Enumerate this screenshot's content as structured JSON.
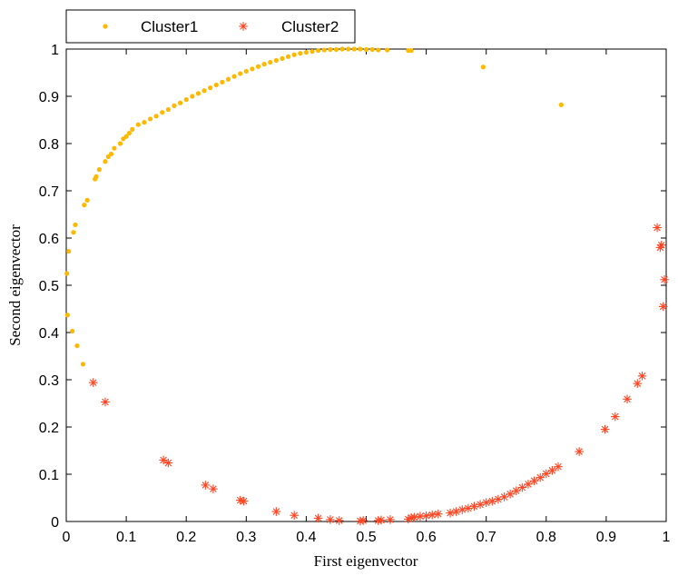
{
  "chart_data": {
    "type": "scatter",
    "title": "",
    "xlabel": "First eigenvector",
    "ylabel": "Second eigenvector",
    "xlim": [
      0,
      1
    ],
    "ylim": [
      0,
      1
    ],
    "xticks": [
      "0",
      "0.1",
      "0.2",
      "0.3",
      "0.4",
      "0.5",
      "0.6",
      "0.7",
      "0.8",
      "0.9",
      "1"
    ],
    "yticks": [
      "0",
      "0.1",
      "0.2",
      "0.3",
      "0.4",
      "0.5",
      "0.6",
      "0.7",
      "0.8",
      "0.9",
      "1"
    ],
    "grid": false,
    "legend_position": "top-left, above plot",
    "series": [
      {
        "name": "Cluster1",
        "marker": "dot",
        "color": "#FFB800",
        "points": [
          [
            0.001,
            0.525
          ],
          [
            0.002,
            0.437
          ],
          [
            0.004,
            0.572
          ],
          [
            0.01,
            0.403
          ],
          [
            0.012,
            0.612
          ],
          [
            0.015,
            0.628
          ],
          [
            0.018,
            0.372
          ],
          [
            0.028,
            0.333
          ],
          [
            0.03,
            0.67
          ],
          [
            0.035,
            0.68
          ],
          [
            0.048,
            0.725
          ],
          [
            0.05,
            0.73
          ],
          [
            0.055,
            0.745
          ],
          [
            0.065,
            0.762
          ],
          [
            0.07,
            0.772
          ],
          [
            0.075,
            0.778
          ],
          [
            0.08,
            0.79
          ],
          [
            0.09,
            0.8
          ],
          [
            0.095,
            0.81
          ],
          [
            0.1,
            0.815
          ],
          [
            0.105,
            0.822
          ],
          [
            0.11,
            0.83
          ],
          [
            0.12,
            0.84
          ],
          [
            0.13,
            0.845
          ],
          [
            0.14,
            0.852
          ],
          [
            0.15,
            0.858
          ],
          [
            0.16,
            0.866
          ],
          [
            0.17,
            0.872
          ],
          [
            0.18,
            0.88
          ],
          [
            0.19,
            0.886
          ],
          [
            0.2,
            0.893
          ],
          [
            0.21,
            0.9
          ],
          [
            0.22,
            0.906
          ],
          [
            0.23,
            0.912
          ],
          [
            0.24,
            0.918
          ],
          [
            0.25,
            0.924
          ],
          [
            0.26,
            0.93
          ],
          [
            0.27,
            0.936
          ],
          [
            0.28,
            0.942
          ],
          [
            0.29,
            0.948
          ],
          [
            0.3,
            0.953
          ],
          [
            0.31,
            0.958
          ],
          [
            0.32,
            0.963
          ],
          [
            0.33,
            0.968
          ],
          [
            0.34,
            0.972
          ],
          [
            0.35,
            0.976
          ],
          [
            0.36,
            0.98
          ],
          [
            0.37,
            0.984
          ],
          [
            0.38,
            0.988
          ],
          [
            0.39,
            0.991
          ],
          [
            0.4,
            0.993
          ],
          [
            0.41,
            0.995
          ],
          [
            0.42,
            0.997
          ],
          [
            0.43,
            0.998
          ],
          [
            0.44,
            0.999
          ],
          [
            0.45,
            0.999
          ],
          [
            0.46,
            1.0
          ],
          [
            0.47,
            1.0
          ],
          [
            0.48,
            1.0
          ],
          [
            0.49,
            1.0
          ],
          [
            0.5,
            0.999
          ],
          [
            0.51,
            0.999
          ],
          [
            0.52,
            0.998
          ],
          [
            0.535,
            0.998
          ],
          [
            0.57,
            0.997
          ],
          [
            0.575,
            0.997
          ],
          [
            0.695,
            0.962
          ],
          [
            0.825,
            0.882
          ]
        ]
      },
      {
        "name": "Cluster2",
        "marker": "star",
        "color": "#FF4422",
        "points": [
          [
            0.045,
            0.294
          ],
          [
            0.065,
            0.253
          ],
          [
            0.162,
            0.13
          ],
          [
            0.17,
            0.124
          ],
          [
            0.232,
            0.077
          ],
          [
            0.245,
            0.069
          ],
          [
            0.29,
            0.045
          ],
          [
            0.296,
            0.043
          ],
          [
            0.35,
            0.021
          ],
          [
            0.38,
            0.013
          ],
          [
            0.42,
            0.007
          ],
          [
            0.44,
            0.004
          ],
          [
            0.455,
            0.002
          ],
          [
            0.49,
            0.001
          ],
          [
            0.495,
            0.002
          ],
          [
            0.52,
            0.002
          ],
          [
            0.525,
            0.003
          ],
          [
            0.54,
            0.004
          ],
          [
            0.57,
            0.005
          ],
          [
            0.575,
            0.008
          ],
          [
            0.58,
            0.009
          ],
          [
            0.59,
            0.011
          ],
          [
            0.6,
            0.012
          ],
          [
            0.61,
            0.014
          ],
          [
            0.62,
            0.016
          ],
          [
            0.64,
            0.018
          ],
          [
            0.65,
            0.021
          ],
          [
            0.66,
            0.025
          ],
          [
            0.67,
            0.028
          ],
          [
            0.68,
            0.032
          ],
          [
            0.69,
            0.036
          ],
          [
            0.7,
            0.04
          ],
          [
            0.71,
            0.043
          ],
          [
            0.72,
            0.047
          ],
          [
            0.73,
            0.052
          ],
          [
            0.74,
            0.058
          ],
          [
            0.75,
            0.065
          ],
          [
            0.76,
            0.072
          ],
          [
            0.77,
            0.079
          ],
          [
            0.78,
            0.086
          ],
          [
            0.79,
            0.093
          ],
          [
            0.8,
            0.101
          ],
          [
            0.81,
            0.108
          ],
          [
            0.82,
            0.116
          ],
          [
            0.855,
            0.148
          ],
          [
            0.898,
            0.195
          ],
          [
            0.915,
            0.222
          ],
          [
            0.935,
            0.259
          ],
          [
            0.952,
            0.292
          ],
          [
            0.96,
            0.308
          ],
          [
            0.985,
            0.622
          ],
          [
            0.99,
            0.58
          ],
          [
            0.992,
            0.585
          ],
          [
            0.995,
            0.455
          ],
          [
            0.997,
            0.512
          ]
        ]
      }
    ]
  }
}
